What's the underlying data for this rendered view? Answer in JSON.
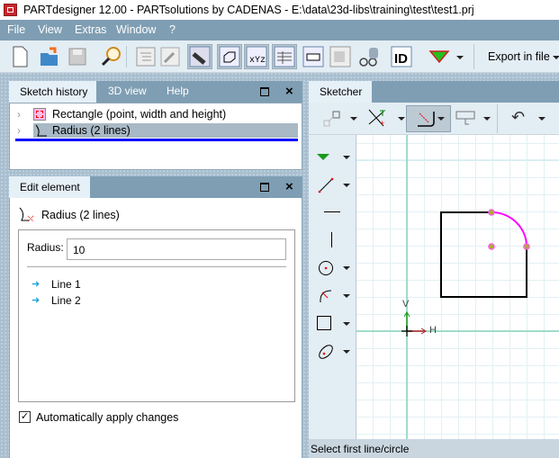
{
  "window": {
    "title": "PARTdesigner 12.00 - PARTsolutions by CADENAS - E:\\data\\23d-libs\\training\\test\\test1.prj",
    "app_icon": "cadenas-logo-icon"
  },
  "menu": [
    "File",
    "View",
    "Extras",
    "Window",
    "?"
  ],
  "toolbar": {
    "icons": [
      "new-file-icon",
      "open-folder-icon",
      "save-icon",
      "search-icon",
      "tree-view-icon",
      "wrench-icon",
      "screw-icon",
      "part-icon",
      "xyz-variables-icon",
      "table-icon",
      "dimension-icon",
      "drawing-icon",
      "glasses-icon",
      "id-icon",
      "green-triangle-icon"
    ],
    "export_label": "Export in file"
  },
  "sketch_history": {
    "tabs": [
      "Sketch history",
      "3D view",
      "Help"
    ],
    "items": [
      {
        "label": "Rectangle (point, width and height)",
        "icon": "rectangle-icon"
      },
      {
        "label": "Radius (2 lines)",
        "icon": "radius-icon",
        "selected": true
      }
    ]
  },
  "edit_element": {
    "tab": "Edit element",
    "element_title": "Radius (2 lines)",
    "radius_label": "Radius:",
    "radius_value": "10",
    "lines": [
      "Line 1",
      "Line 2"
    ],
    "auto_apply_label": "Automatically apply changes",
    "auto_apply_checked": true
  },
  "sketcher": {
    "tab": "Sketcher",
    "status": "Select first line/circle",
    "axis_v": "V",
    "axis_h": "H",
    "colors": {
      "axis": "#86d3b9",
      "arc": "#ff00ff",
      "point": "#b5a63a",
      "selection": "#0000ff"
    }
  }
}
